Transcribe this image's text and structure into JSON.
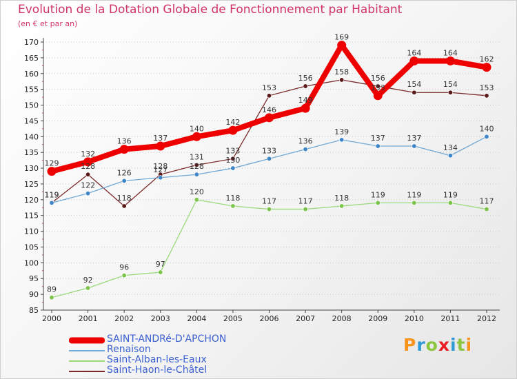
{
  "title": "Evolution de la Dotation Globale de Fonctionnement par Habitant",
  "subtitle": "(en € et par an)",
  "logo": {
    "text": "Proxiti",
    "letters": [
      {
        "ch": "P",
        "color": "#f7941d"
      },
      {
        "ch": "r",
        "color": "#2e9ad6"
      },
      {
        "ch": "o",
        "color": "#8cc63f"
      },
      {
        "ch": "x",
        "color": "#ec1c24"
      },
      {
        "ch": "i",
        "color": "#2e9ad6"
      },
      {
        "ch": "t",
        "color": "#8cc63f"
      },
      {
        "ch": "i",
        "color": "#f7941d"
      }
    ]
  },
  "chart_data": {
    "type": "line",
    "title": "Evolution de la Dotation Globale de Fonctionnement par Habitant",
    "ylabel": "(en € et par an)",
    "xlabel": "",
    "x": [
      "2000",
      "2001",
      "2002",
      "2003",
      "2004",
      "2005",
      "2006",
      "2007",
      "2008",
      "2009",
      "2010",
      "2011",
      "2012"
    ],
    "ylim": [
      85,
      170
    ],
    "yticks": [
      85,
      90,
      95,
      100,
      105,
      110,
      115,
      120,
      125,
      130,
      135,
      140,
      145,
      150,
      155,
      160,
      165,
      170
    ],
    "grid": "horizontal-dotted",
    "legend_position": "bottom-left",
    "series": [
      {
        "name": "SAINT-ANDRé-D'APCHON",
        "color": "#ee0000",
        "emphasis": true,
        "values": [
          129,
          132,
          136,
          137,
          140,
          142,
          146,
          149,
          169,
          153,
          164,
          164,
          162
        ]
      },
      {
        "name": "Renaison",
        "color": "#6fa8d6",
        "marker": "#3d85c6",
        "values": [
          119,
          122,
          126,
          127,
          128,
          130,
          133,
          136,
          139,
          137,
          137,
          134,
          140
        ]
      },
      {
        "name": "Saint-Alban-les-Eaux",
        "color": "#9bd97c",
        "marker": "#7cc34a",
        "values": [
          89,
          92,
          96,
          97,
          120,
          118,
          117,
          117,
          118,
          119,
          119,
          119,
          117
        ]
      },
      {
        "name": "Saint-Haon-le-Châtel",
        "color": "#7a2a2a",
        "marker": "#5a1a1a",
        "values": [
          119,
          128,
          118,
          128,
          131,
          133,
          153,
          156,
          158,
          156,
          154,
          154,
          153
        ]
      }
    ]
  }
}
